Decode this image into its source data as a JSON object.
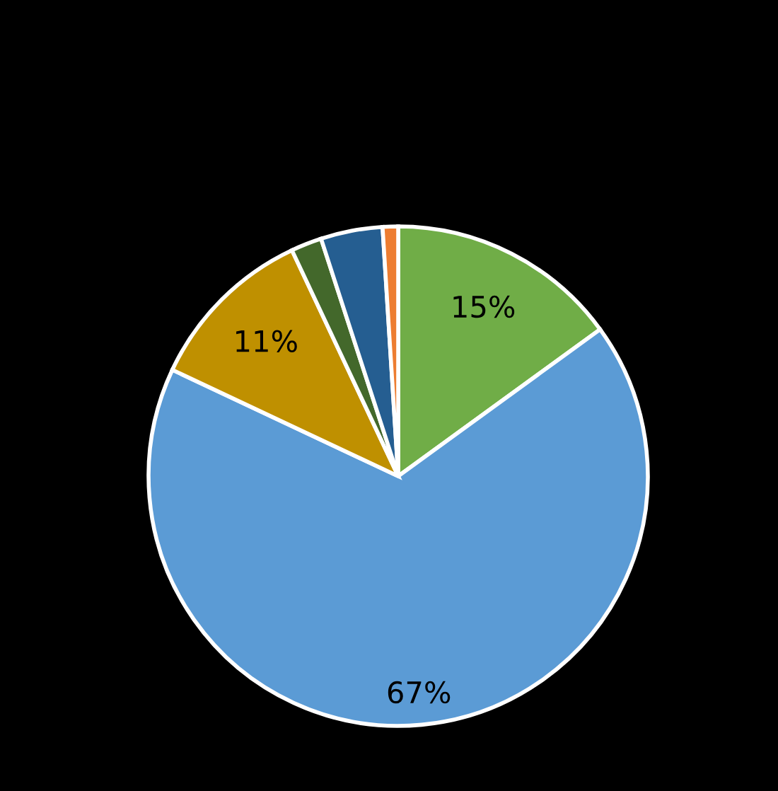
{
  "chart_data": {
    "type": "pie",
    "categories": [
      null,
      null,
      null,
      null,
      null,
      null
    ],
    "values": [
      15,
      67,
      11,
      2,
      4,
      1
    ],
    "colors": [
      "#70ad47",
      "#5b9bd5",
      "#bf9000",
      "#43682b",
      "#255e91",
      "#ed7d31"
    ],
    "value_labels": [
      "15%",
      "67%",
      "11%",
      null,
      null,
      null
    ]
  }
}
